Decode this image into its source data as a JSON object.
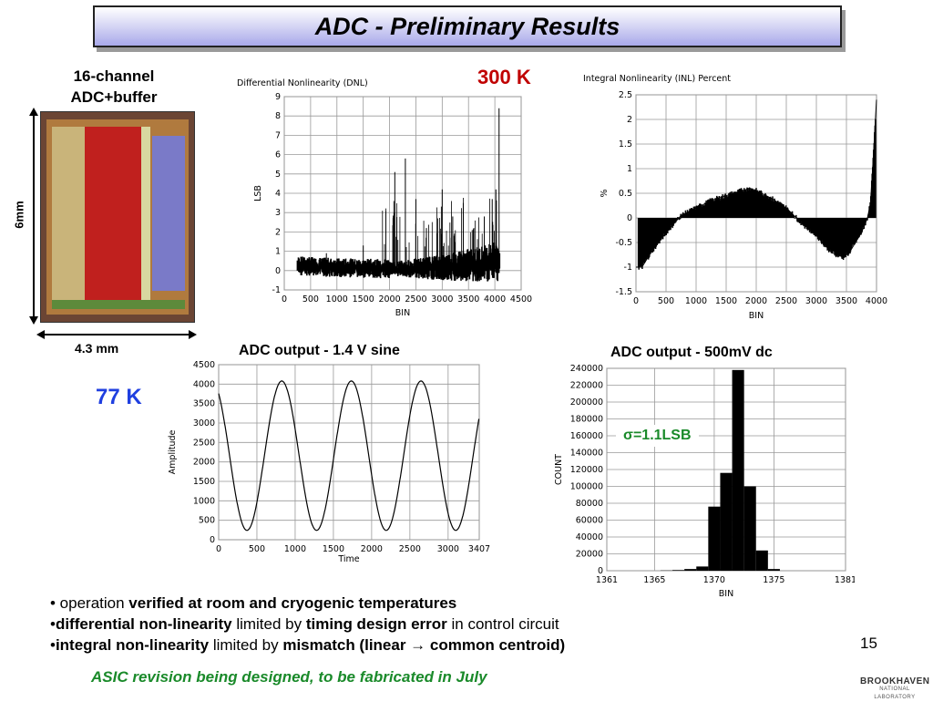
{
  "slide": {
    "title": "ADC - Preliminary Results",
    "page_number": "15",
    "footer": "ASIC revision being designed, to be fabricated in July",
    "logo_main": "BROOKHAVEN",
    "logo_sub": "NATIONAL LABORATORY"
  },
  "chip": {
    "label_line1": "16-channel",
    "label_line2": "ADC+buffer",
    "height_label": "6mm",
    "width_label": "4.3 mm"
  },
  "labels": {
    "temp_300": "300 K",
    "temp_77": "77 K",
    "sigma": "σ=1.1LSB"
  },
  "bullets": [
    {
      "plain1": "• operation ",
      "bold1": "verified at room and cryogenic temperatures",
      "plain2": "",
      "bold2": "",
      "plain3": ""
    },
    {
      "plain1": "•",
      "bold1": "differential non-linearity",
      "plain2": " limited by ",
      "bold2": "timing design error",
      "plain3": " in control circuit"
    },
    {
      "plain1": "•",
      "bold1": "integral non-linearity",
      "plain2": " limited by ",
      "bold2": "mismatch (linear → common centroid)",
      "plain3": ""
    }
  ],
  "colors": {
    "temp_300": "#c00000",
    "temp_77": "#1f3fe0",
    "sigma": "#1a8a2a",
    "footer": "#1a8a2a"
  },
  "chart_data": [
    {
      "type": "line",
      "title": "Differential Nonlinearity (DNL)",
      "xlabel": "BIN",
      "ylabel": "LSB",
      "xlim": [
        0,
        4500
      ],
      "ylim": [
        -1,
        9
      ],
      "xticks": [
        "0",
        "500",
        "1000",
        "1500",
        "2000",
        "2500",
        "3000",
        "3500",
        "4000",
        "4500"
      ],
      "yticks": [
        "-1",
        "0",
        "1",
        "2",
        "3",
        "4",
        "5",
        "6",
        "7",
        "8",
        "9"
      ],
      "grid": true,
      "note": "dense noisy trace between bins ~250 and ~4095, baseline about 0.2 LSB, spikes up to ~8.4 near 4080",
      "series": [
        {
          "x": [
            250,
            800,
            1500,
            2100,
            2300,
            2500,
            2700,
            3000,
            3200,
            3400,
            3600,
            3800,
            3950,
            4020,
            4080
          ],
          "y": [
            0.2,
            0.9,
            1.3,
            5.1,
            5.8,
            3.7,
            2.2,
            4.2,
            2.8,
            3.5,
            2.2,
            2.8,
            3.7,
            4.2,
            8.4
          ]
        }
      ]
    },
    {
      "type": "area",
      "title": "Integral Nonlinearity (INL) Percent",
      "xlabel": "BIN",
      "ylabel": "%",
      "xlim": [
        0,
        4000
      ],
      "ylim": [
        -1.5,
        2.5
      ],
      "xticks": [
        "0",
        "500",
        "1000",
        "1500",
        "2000",
        "2500",
        "3000",
        "3500",
        "4000"
      ],
      "yticks": [
        "-1.5",
        "-1",
        "-0.5",
        "0",
        "0.5",
        "1",
        "1.5",
        "2",
        "2.5"
      ],
      "grid": true,
      "series": [
        {
          "x": [
            0,
            100,
            250,
            500,
            750,
            1000,
            1250,
            1500,
            1750,
            1900,
            2000,
            2250,
            2500,
            2750,
            3000,
            3250,
            3450,
            3550,
            3750,
            3850,
            3900,
            3950,
            4000
          ],
          "y": [
            -1.0,
            -1.0,
            -0.7,
            -0.3,
            0.05,
            0.2,
            0.35,
            0.45,
            0.55,
            0.6,
            0.55,
            0.4,
            0.2,
            -0.1,
            -0.35,
            -0.7,
            -0.8,
            -0.7,
            -0.3,
            0.0,
            0.3,
            1.3,
            2.4
          ]
        }
      ]
    },
    {
      "type": "line",
      "title": "ADC output - 1.4 V sine",
      "xlabel": "Time",
      "ylabel": "Amplitude",
      "xlim": [
        0,
        3407
      ],
      "ylim": [
        0,
        4500
      ],
      "xticks": [
        "0",
        "500",
        "1000",
        "1500",
        "2000",
        "2500",
        "3000",
        "3407"
      ],
      "yticks": [
        "0",
        "500",
        "1000",
        "1500",
        "2000",
        "2500",
        "3000",
        "3500",
        "4000",
        "4500"
      ],
      "grid": true,
      "sine": {
        "center": 2160,
        "amplitude": 1920,
        "period": 910,
        "phase_zero_x": 0
      }
    },
    {
      "type": "bar",
      "title": "ADC output - 500mV dc",
      "xlabel": "BIN",
      "ylabel": "COUNT",
      "xlim": [
        1361,
        1381
      ],
      "ylim": [
        0,
        240000
      ],
      "xticks": [
        "1361",
        "1365",
        "1370",
        "1375",
        "1381"
      ],
      "yticks": [
        "0",
        "20000",
        "40000",
        "60000",
        "80000",
        "100000",
        "120000",
        "140000",
        "160000",
        "180000",
        "200000",
        "220000",
        "240000"
      ],
      "grid": true,
      "categories": [
        1366,
        1367,
        1368,
        1369,
        1370,
        1371,
        1372,
        1373,
        1374,
        1375
      ],
      "values": [
        300,
        800,
        2000,
        5000,
        76000,
        116000,
        238000,
        100000,
        24000,
        2000
      ]
    }
  ]
}
